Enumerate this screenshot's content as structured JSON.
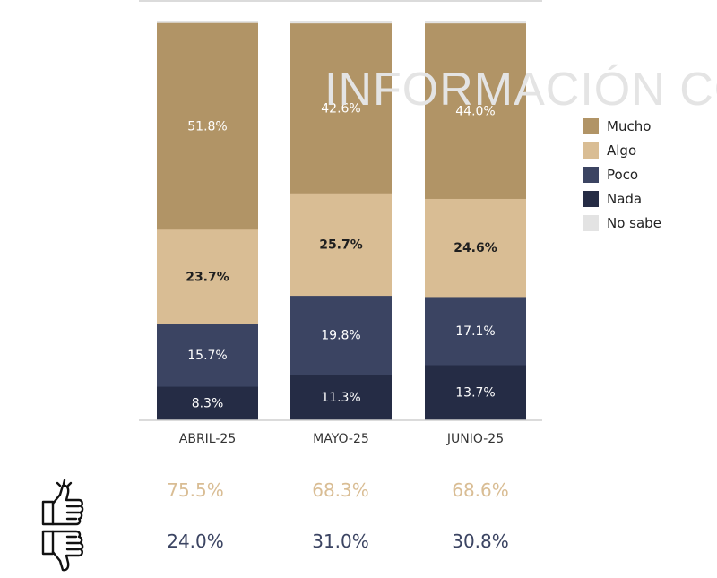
{
  "watermark": "INFORMACIÓN CO",
  "colors": {
    "mucho": "#b19466",
    "algo": "#d9bd94",
    "poco": "#3b4462",
    "nada": "#252c45",
    "no_sabe": "#e3e3e3",
    "approve": "#d9bd94",
    "disapprove": "#3b4462"
  },
  "chart_data": {
    "type": "bar",
    "stacked": true,
    "categories": [
      "ABRIL-25",
      "MAYO-25",
      "JUNIO-25"
    ],
    "series": [
      {
        "name": "Nada",
        "values": [
          8.3,
          11.3,
          13.7
        ],
        "labels": [
          "8.3%",
          "11.3%",
          "13.7%"
        ]
      },
      {
        "name": "Poco",
        "values": [
          15.7,
          19.8,
          17.1
        ],
        "labels": [
          "15.7%",
          "19.8%",
          "17.1%"
        ]
      },
      {
        "name": "Algo",
        "values": [
          23.7,
          25.7,
          24.6
        ],
        "labels": [
          "23.7%",
          "25.7%",
          "24.6%"
        ]
      },
      {
        "name": "Mucho",
        "values": [
          51.8,
          42.6,
          44.0
        ],
        "labels": [
          "51.8%",
          "42.6%",
          "44.0%"
        ]
      },
      {
        "name": "No sabe",
        "values": [
          0.5,
          0.6,
          0.6
        ],
        "labels": [
          "",
          "",
          ""
        ]
      }
    ],
    "legend": [
      "Mucho",
      "Algo",
      "Poco",
      "Nada",
      "No sabe"
    ],
    "legend_position": "right",
    "ylim": [
      0,
      100
    ],
    "grid": false
  },
  "summary": {
    "approve_icon": "thumbs-up-icon",
    "disapprove_icon": "thumbs-down-icon",
    "approve": [
      "75.5%",
      "68.3%",
      "68.6%"
    ],
    "disapprove": [
      "24.0%",
      "31.0%",
      "30.8%"
    ]
  }
}
